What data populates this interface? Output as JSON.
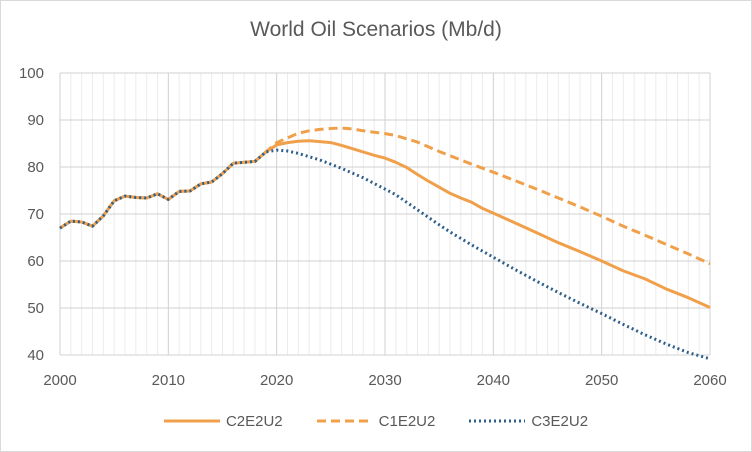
{
  "chart_data": {
    "type": "line",
    "title": "World Oil Scenarios (Mb/d)",
    "xlabel": "",
    "ylabel": "",
    "xlim": [
      2000,
      2060
    ],
    "ylim": [
      40,
      100
    ],
    "x_ticks": [
      2000,
      2010,
      2020,
      2030,
      2040,
      2050,
      2060
    ],
    "y_ticks": [
      40,
      50,
      60,
      70,
      80,
      90,
      100
    ],
    "grid": true,
    "legend_position": "bottom",
    "series": [
      {
        "name": "C2E2U2",
        "color": "#f0a04b",
        "style": "solid",
        "x": [
          2000,
          2001,
          2002,
          2003,
          2004,
          2005,
          2006,
          2007,
          2008,
          2009,
          2010,
          2011,
          2012,
          2013,
          2014,
          2015,
          2016,
          2017,
          2018,
          2019,
          2020,
          2021,
          2022,
          2023,
          2024,
          2025,
          2026,
          2027,
          2028,
          2029,
          2030,
          2031,
          2032,
          2033,
          2034,
          2035,
          2036,
          2037,
          2038,
          2039,
          2040,
          2042,
          2044,
          2046,
          2048,
          2050,
          2052,
          2054,
          2056,
          2058,
          2060
        ],
        "y": [
          67.0,
          68.5,
          68.3,
          67.4,
          69.6,
          72.8,
          73.8,
          73.5,
          73.4,
          74.3,
          73.1,
          74.8,
          74.9,
          76.4,
          76.8,
          78.6,
          80.8,
          81.0,
          81.2,
          83.2,
          84.7,
          85.2,
          85.5,
          85.6,
          85.4,
          85.2,
          84.6,
          83.9,
          83.2,
          82.5,
          81.9,
          81.0,
          79.9,
          78.4,
          77.0,
          75.7,
          74.4,
          73.4,
          72.5,
          71.2,
          70.2,
          68.1,
          66.0,
          63.9,
          62.0,
          60.0,
          57.9,
          56.2,
          54.0,
          52.2,
          50.1
        ]
      },
      {
        "name": "C1E2U2",
        "color": "#f0a04b",
        "style": "dashed",
        "x": [
          2000,
          2001,
          2002,
          2003,
          2004,
          2005,
          2006,
          2007,
          2008,
          2009,
          2010,
          2011,
          2012,
          2013,
          2014,
          2015,
          2016,
          2017,
          2018,
          2019,
          2020,
          2021,
          2022,
          2023,
          2024,
          2025,
          2026,
          2027,
          2028,
          2029,
          2030,
          2031,
          2032,
          2033,
          2034,
          2035,
          2036,
          2038,
          2040,
          2042,
          2044,
          2046,
          2048,
          2050,
          2052,
          2054,
          2056,
          2058,
          2060
        ],
        "y": [
          67.0,
          68.5,
          68.3,
          67.4,
          69.6,
          72.8,
          73.8,
          73.5,
          73.4,
          74.3,
          73.1,
          74.8,
          74.9,
          76.4,
          76.8,
          78.6,
          80.8,
          81.0,
          81.2,
          83.2,
          85.2,
          86.2,
          87.2,
          87.7,
          88.0,
          88.2,
          88.3,
          88.1,
          87.7,
          87.4,
          87.1,
          86.7,
          86.0,
          85.3,
          84.3,
          83.3,
          82.4,
          80.6,
          78.9,
          77.1,
          75.3,
          73.4,
          71.5,
          69.5,
          67.4,
          65.5,
          63.5,
          61.5,
          59.4
        ]
      },
      {
        "name": "C3E2U2",
        "color": "#2e5f8a",
        "style": "dotted",
        "x": [
          2000,
          2001,
          2002,
          2003,
          2004,
          2005,
          2006,
          2007,
          2008,
          2009,
          2010,
          2011,
          2012,
          2013,
          2014,
          2015,
          2016,
          2017,
          2018,
          2019,
          2020,
          2021,
          2022,
          2023,
          2024,
          2025,
          2026,
          2027,
          2028,
          2029,
          2030,
          2031,
          2032,
          2033,
          2034,
          2035,
          2036,
          2038,
          2040,
          2042,
          2044,
          2046,
          2048,
          2050,
          2052,
          2054,
          2056,
          2058,
          2060
        ],
        "y": [
          67.0,
          68.5,
          68.3,
          67.4,
          69.6,
          72.8,
          73.8,
          73.5,
          73.4,
          74.3,
          73.1,
          74.8,
          74.9,
          76.4,
          76.8,
          78.6,
          80.8,
          81.0,
          81.2,
          83.2,
          83.6,
          83.4,
          82.9,
          82.2,
          81.5,
          80.6,
          79.7,
          78.7,
          77.7,
          76.5,
          75.3,
          74.1,
          72.5,
          70.9,
          69.3,
          67.7,
          66.2,
          63.4,
          60.8,
          58.2,
          55.7,
          53.3,
          51.0,
          48.8,
          46.5,
          44.3,
          42.3,
          40.5,
          39.2
        ]
      }
    ]
  }
}
